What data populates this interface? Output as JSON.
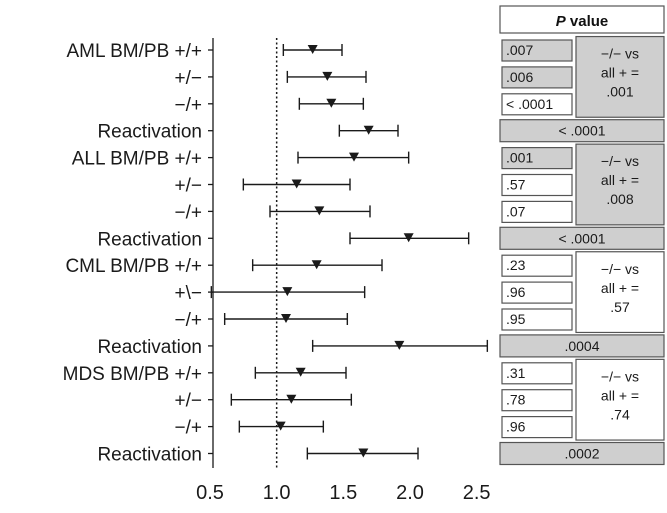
{
  "chart_data": {
    "type": "forest",
    "title": "",
    "xlabel": "",
    "xlim": [
      0.5,
      2.6
    ],
    "x_ticks": [
      "0.5",
      "1.0",
      "1.5",
      "2.0",
      "2.5"
    ],
    "x_tick_values": [
      0.5,
      1.0,
      1.5,
      2.0,
      2.5
    ],
    "reference_line": 1.0,
    "rows": [
      {
        "label": "AML BM/PB +/+",
        "estimate": 1.27,
        "lower": 1.05,
        "upper": 1.49
      },
      {
        "label": "+/−",
        "estimate": 1.38,
        "lower": 1.08,
        "upper": 1.67
      },
      {
        "label": "−/+",
        "estimate": 1.41,
        "lower": 1.17,
        "upper": 1.65
      },
      {
        "label": "Reactivation",
        "estimate": 1.69,
        "lower": 1.47,
        "upper": 1.91
      },
      {
        "label": "ALL BM/PB +/+",
        "estimate": 1.58,
        "lower": 1.16,
        "upper": 1.99
      },
      {
        "label": "+/−",
        "estimate": 1.15,
        "lower": 0.75,
        "upper": 1.55
      },
      {
        "label": "−/+",
        "estimate": 1.32,
        "lower": 0.95,
        "upper": 1.7
      },
      {
        "label": "Reactivation",
        "estimate": 1.99,
        "lower": 1.55,
        "upper": 2.44
      },
      {
        "label": "CML BM/PB +/+",
        "estimate": 1.3,
        "lower": 0.82,
        "upper": 1.79
      },
      {
        "label": "+\\−",
        "estimate": 1.08,
        "lower": 0.51,
        "upper": 1.66
      },
      {
        "label": "−/+",
        "estimate": 1.07,
        "lower": 0.61,
        "upper": 1.53
      },
      {
        "label": "Reactivation",
        "estimate": 1.92,
        "lower": 1.27,
        "upper": 2.58
      },
      {
        "label": "MDS BM/PB +/+",
        "estimate": 1.18,
        "lower": 0.84,
        "upper": 1.52
      },
      {
        "label": "+/−",
        "estimate": 1.11,
        "lower": 0.66,
        "upper": 1.56
      },
      {
        "label": "−/+",
        "estimate": 1.03,
        "lower": 0.72,
        "upper": 1.35
      },
      {
        "label": "Reactivation",
        "estimate": 1.65,
        "lower": 1.23,
        "upper": 2.06
      }
    ],
    "p_value_header": {
      "prefix": "P",
      "suffix": " value"
    },
    "p_values": [
      {
        "kind": "rows",
        "values": [
          ".007",
          ".006",
          "< .0001"
        ],
        "shaded": [
          true,
          true,
          false
        ],
        "comparison": [
          "−/− vs",
          "all + =",
          ".001"
        ],
        "comparison_shaded": true
      },
      {
        "kind": "full",
        "value": "< .0001",
        "shaded": true
      },
      {
        "kind": "rows",
        "values": [
          ".001",
          ".57",
          ".07"
        ],
        "shaded": [
          true,
          false,
          false
        ],
        "comparison": [
          "−/− vs",
          "all + =",
          ".008"
        ],
        "comparison_shaded": true
      },
      {
        "kind": "full",
        "value": "< .0001",
        "shaded": true
      },
      {
        "kind": "rows",
        "values": [
          ".23",
          ".96",
          ".95"
        ],
        "shaded": [
          false,
          false,
          false
        ],
        "comparison": [
          "−/− vs",
          "all + =",
          ".57"
        ],
        "comparison_shaded": false
      },
      {
        "kind": "full",
        "value": ".0004",
        "shaded": true
      },
      {
        "kind": "rows",
        "values": [
          ".31",
          ".78",
          ".96"
        ],
        "shaded": [
          false,
          false,
          false
        ],
        "comparison": [
          "−/− vs",
          "all + =",
          ".74"
        ],
        "comparison_shaded": false
      },
      {
        "kind": "full",
        "value": ".0002",
        "shaded": true
      }
    ]
  },
  "colors": {
    "shade": "#cfcfcf",
    "border": "#555555",
    "ink": "#1a1a1a"
  }
}
